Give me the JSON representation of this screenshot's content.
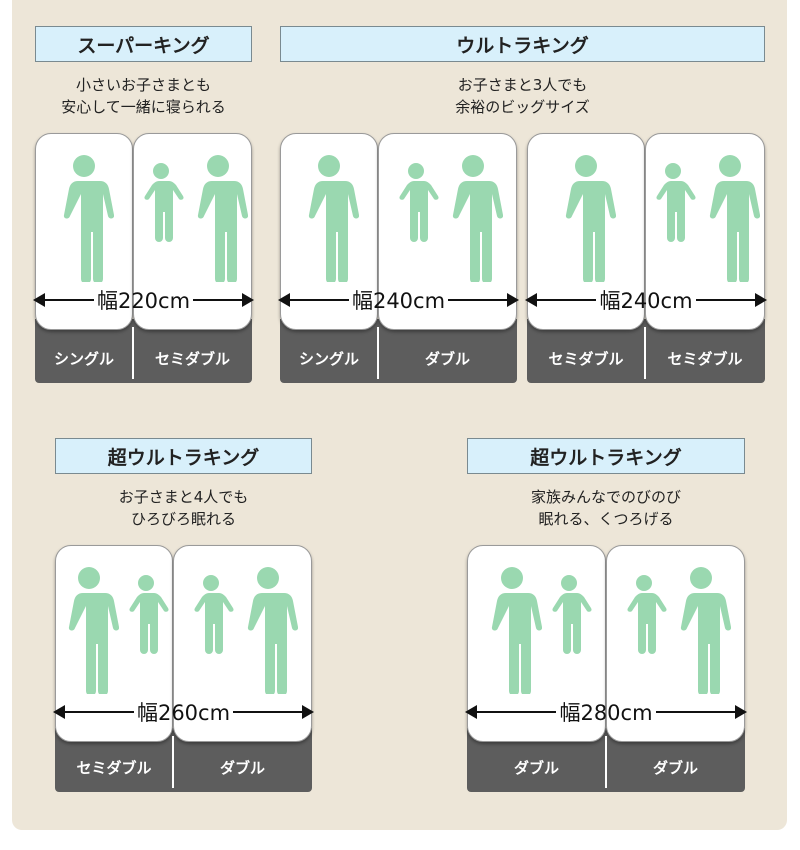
{
  "colors": {
    "panel": "#ede6d8",
    "title_bg": "#d8f0fb",
    "person": "#9ad8b0",
    "base": "#5d5d5d"
  },
  "groups": [
    {
      "title": "スーパーキング",
      "caption": [
        "小さいお子さまとも",
        "安心して一緒に寝られる"
      ],
      "sets": [
        {
          "width": "幅220cm",
          "beds": [
            {
              "label": "シングル",
              "people": [
                "adult"
              ]
            },
            {
              "label": "セミダブル",
              "people": [
                "child",
                "adult"
              ]
            }
          ]
        }
      ]
    },
    {
      "title": "ウルトラキング",
      "caption": [
        "お子さまと3人でも",
        "余裕のビッグサイズ"
      ],
      "sets": [
        {
          "width": "幅240cm",
          "beds": [
            {
              "label": "シングル",
              "people": [
                "adult"
              ]
            },
            {
              "label": "ダブル",
              "people": [
                "child",
                "adult"
              ]
            }
          ]
        },
        {
          "width": "幅240cm",
          "beds": [
            {
              "label": "セミダブル",
              "people": [
                "adult"
              ]
            },
            {
              "label": "セミダブル",
              "people": [
                "child",
                "adult"
              ]
            }
          ]
        }
      ]
    },
    {
      "title": "超ウルトラキング",
      "caption": [
        "お子さまと4人でも",
        "ひろびろ眠れる"
      ],
      "sets": [
        {
          "width": "幅260cm",
          "beds": [
            {
              "label": "セミダブル",
              "people": [
                "adult",
                "child"
              ]
            },
            {
              "label": "ダブル",
              "people": [
                "child",
                "adult"
              ]
            }
          ]
        }
      ]
    },
    {
      "title": "超ウルトラキング",
      "caption": [
        "家族みんなでのびのび",
        "眠れる、くつろげる"
      ],
      "sets": [
        {
          "width": "幅280cm",
          "beds": [
            {
              "label": "ダブル",
              "people": [
                "adult",
                "child"
              ]
            },
            {
              "label": "ダブル",
              "people": [
                "child",
                "adult"
              ]
            }
          ]
        }
      ]
    }
  ]
}
